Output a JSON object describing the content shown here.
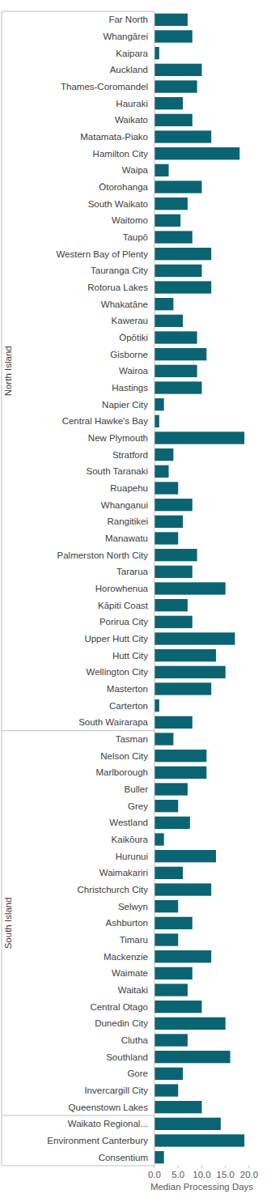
{
  "chart_data": {
    "type": "bar",
    "orientation": "horizontal",
    "x_label": "Median Processing Days",
    "categories": [
      "Far North",
      "Whangārei",
      "Kaipara",
      "Auckland",
      "Thames-Coromandel",
      "Hauraki",
      "Waikato",
      "Matamata-Piako",
      "Hamilton City",
      "Waipa",
      "Ōtorohanga",
      "South Waikato",
      "Waitomo",
      "Taupō",
      "Western Bay of Plenty",
      "Tauranga City",
      "Rotorua Lakes",
      "Whakatāne",
      "Kawerau",
      "Ōpōtiki",
      "Gisborne",
      "Wairoa",
      "Hastings",
      "Napier City",
      "Central Hawke's Bay",
      "New Plymouth",
      "Stratford",
      "South Taranaki",
      "Ruapehu",
      "Whanganui",
      "Rangitikei",
      "Manawatu",
      "Palmerston North City",
      "Tararua",
      "Horowhenua",
      "Kāpiti Coast",
      "Porirua City",
      "Upper Hutt City",
      "Hutt City",
      "Wellington City",
      "Masterton",
      "Carterton",
      "South Wairarapa",
      "Tasman",
      "Nelson City",
      "Marlborough",
      "Buller",
      "Grey",
      "Westland",
      "Kaikōura",
      "Hurunui",
      "Waimakariri",
      "Christchurch City",
      "Selwyn",
      "Ashburton",
      "Timaru",
      "Mackenzie",
      "Waimate",
      "Waitaki",
      "Central Otago",
      "Dunedin City",
      "Clutha",
      "Southland",
      "Gore",
      "Invercargill City",
      "Queenstown Lakes",
      "Waikato Regional...",
      "Environment Canterbury",
      "Consentium"
    ],
    "values": [
      7,
      8,
      1,
      10,
      9,
      6,
      8,
      12,
      18,
      3,
      10,
      7,
      5.5,
      8,
      12,
      10,
      12,
      4,
      6,
      9,
      11,
      9,
      10,
      2,
      1,
      19,
      4,
      3,
      5,
      8,
      6,
      5,
      9,
      8,
      15,
      7,
      8,
      17,
      13,
      15,
      12,
      1,
      8,
      4,
      11,
      11,
      7,
      5,
      7.5,
      2,
      13,
      6,
      12,
      5,
      8,
      5,
      12,
      8,
      7,
      10,
      15,
      7,
      16,
      6,
      5,
      10,
      14,
      19,
      2
    ],
    "groups": [
      {
        "name": "North Island",
        "size": 43
      },
      {
        "name": "South Island",
        "size": 23
      },
      {
        "name": null,
        "size": 3
      }
    ],
    "color": "#0b6472",
    "xlim": [
      0,
      20
    ],
    "xticks": [
      {
        "value": 0,
        "label": "0.0"
      },
      {
        "value": 5,
        "label": "5.0"
      },
      {
        "value": 10,
        "label": "10.0"
      },
      {
        "value": 15,
        "label": "15.0"
      },
      {
        "value": 20,
        "label": "20.0"
      }
    ],
    "grid": false
  }
}
